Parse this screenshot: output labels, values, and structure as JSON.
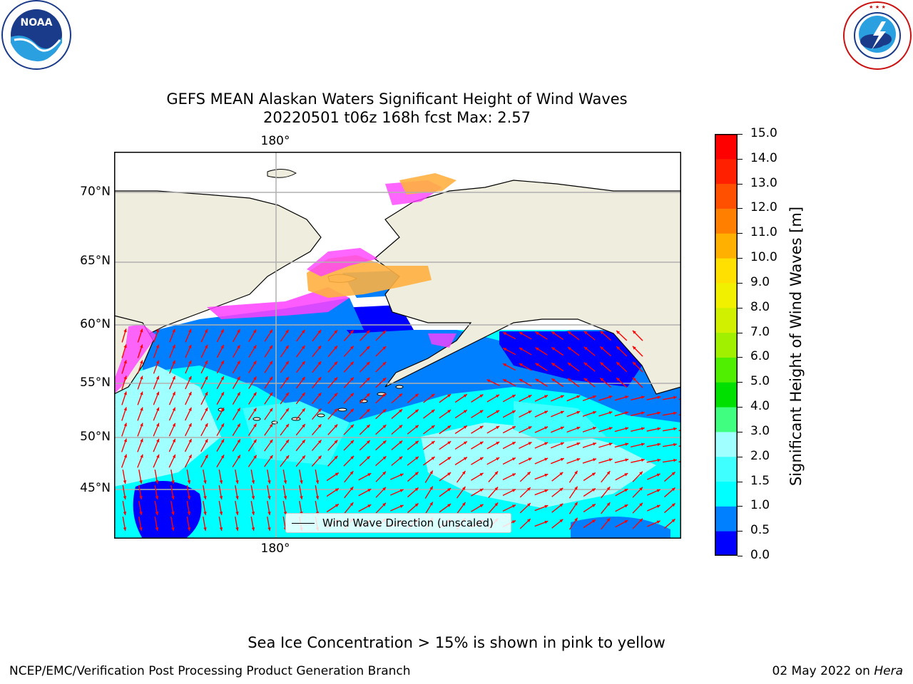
{
  "title": {
    "line1": "GEFS MEAN Alaskan Waters Significant Height of Wind Waves",
    "line2": "20220501 t06z 168h fcst   Max: 2.57"
  },
  "logos": {
    "noaa_text": "NOAA",
    "noaa_ring": "NATIONAL OCEANIC AND ATMOSPHERIC ADMINISTRATION · U.S. DEPARTMENT OF COMMERCE",
    "nws_ring": "NATIONAL WEATHER SERVICE"
  },
  "map": {
    "lon_label_top": "180°",
    "lon_label_bottom": "180°",
    "lat_labels": [
      "70°N",
      "65°N",
      "60°N",
      "55°N",
      "50°N",
      "45°N"
    ],
    "legend_label": "Wind Wave Direction (unscaled)",
    "colors": {
      "land": "#efedde",
      "arrow": "#ff0000",
      "ice_pink": "#ff40ff",
      "ice_orange": "#ffb040"
    },
    "grid": true
  },
  "colorbar": {
    "label": "Significant Height of Wind Waves [m]",
    "ticks": [
      "15.0",
      "14.0",
      "13.0",
      "12.0",
      "11.0",
      "10.0",
      "9.0",
      "8.0",
      "7.0",
      "6.0",
      "5.0",
      "4.0",
      "3.0",
      "2.0",
      "1.5",
      "1.0",
      "0.5",
      "0.0"
    ],
    "colors_bottom_to_top": [
      "#0000ff",
      "#0080ff",
      "#00ffff",
      "#40ffff",
      "#a0ffff",
      "#40ff80",
      "#00e000",
      "#50ee00",
      "#a0f000",
      "#d0f000",
      "#f0f000",
      "#ffe000",
      "#ffb000",
      "#ff8000",
      "#ff5000",
      "#ff2000",
      "#ff0000"
    ]
  },
  "footer": {
    "note": "Sea Ice Concentration > 15% is shown in pink to yellow",
    "left": "NCEP/EMC/Verification Post Processing Product Generation Branch",
    "date": "02 May 2022 on",
    "machine": "Hera"
  }
}
